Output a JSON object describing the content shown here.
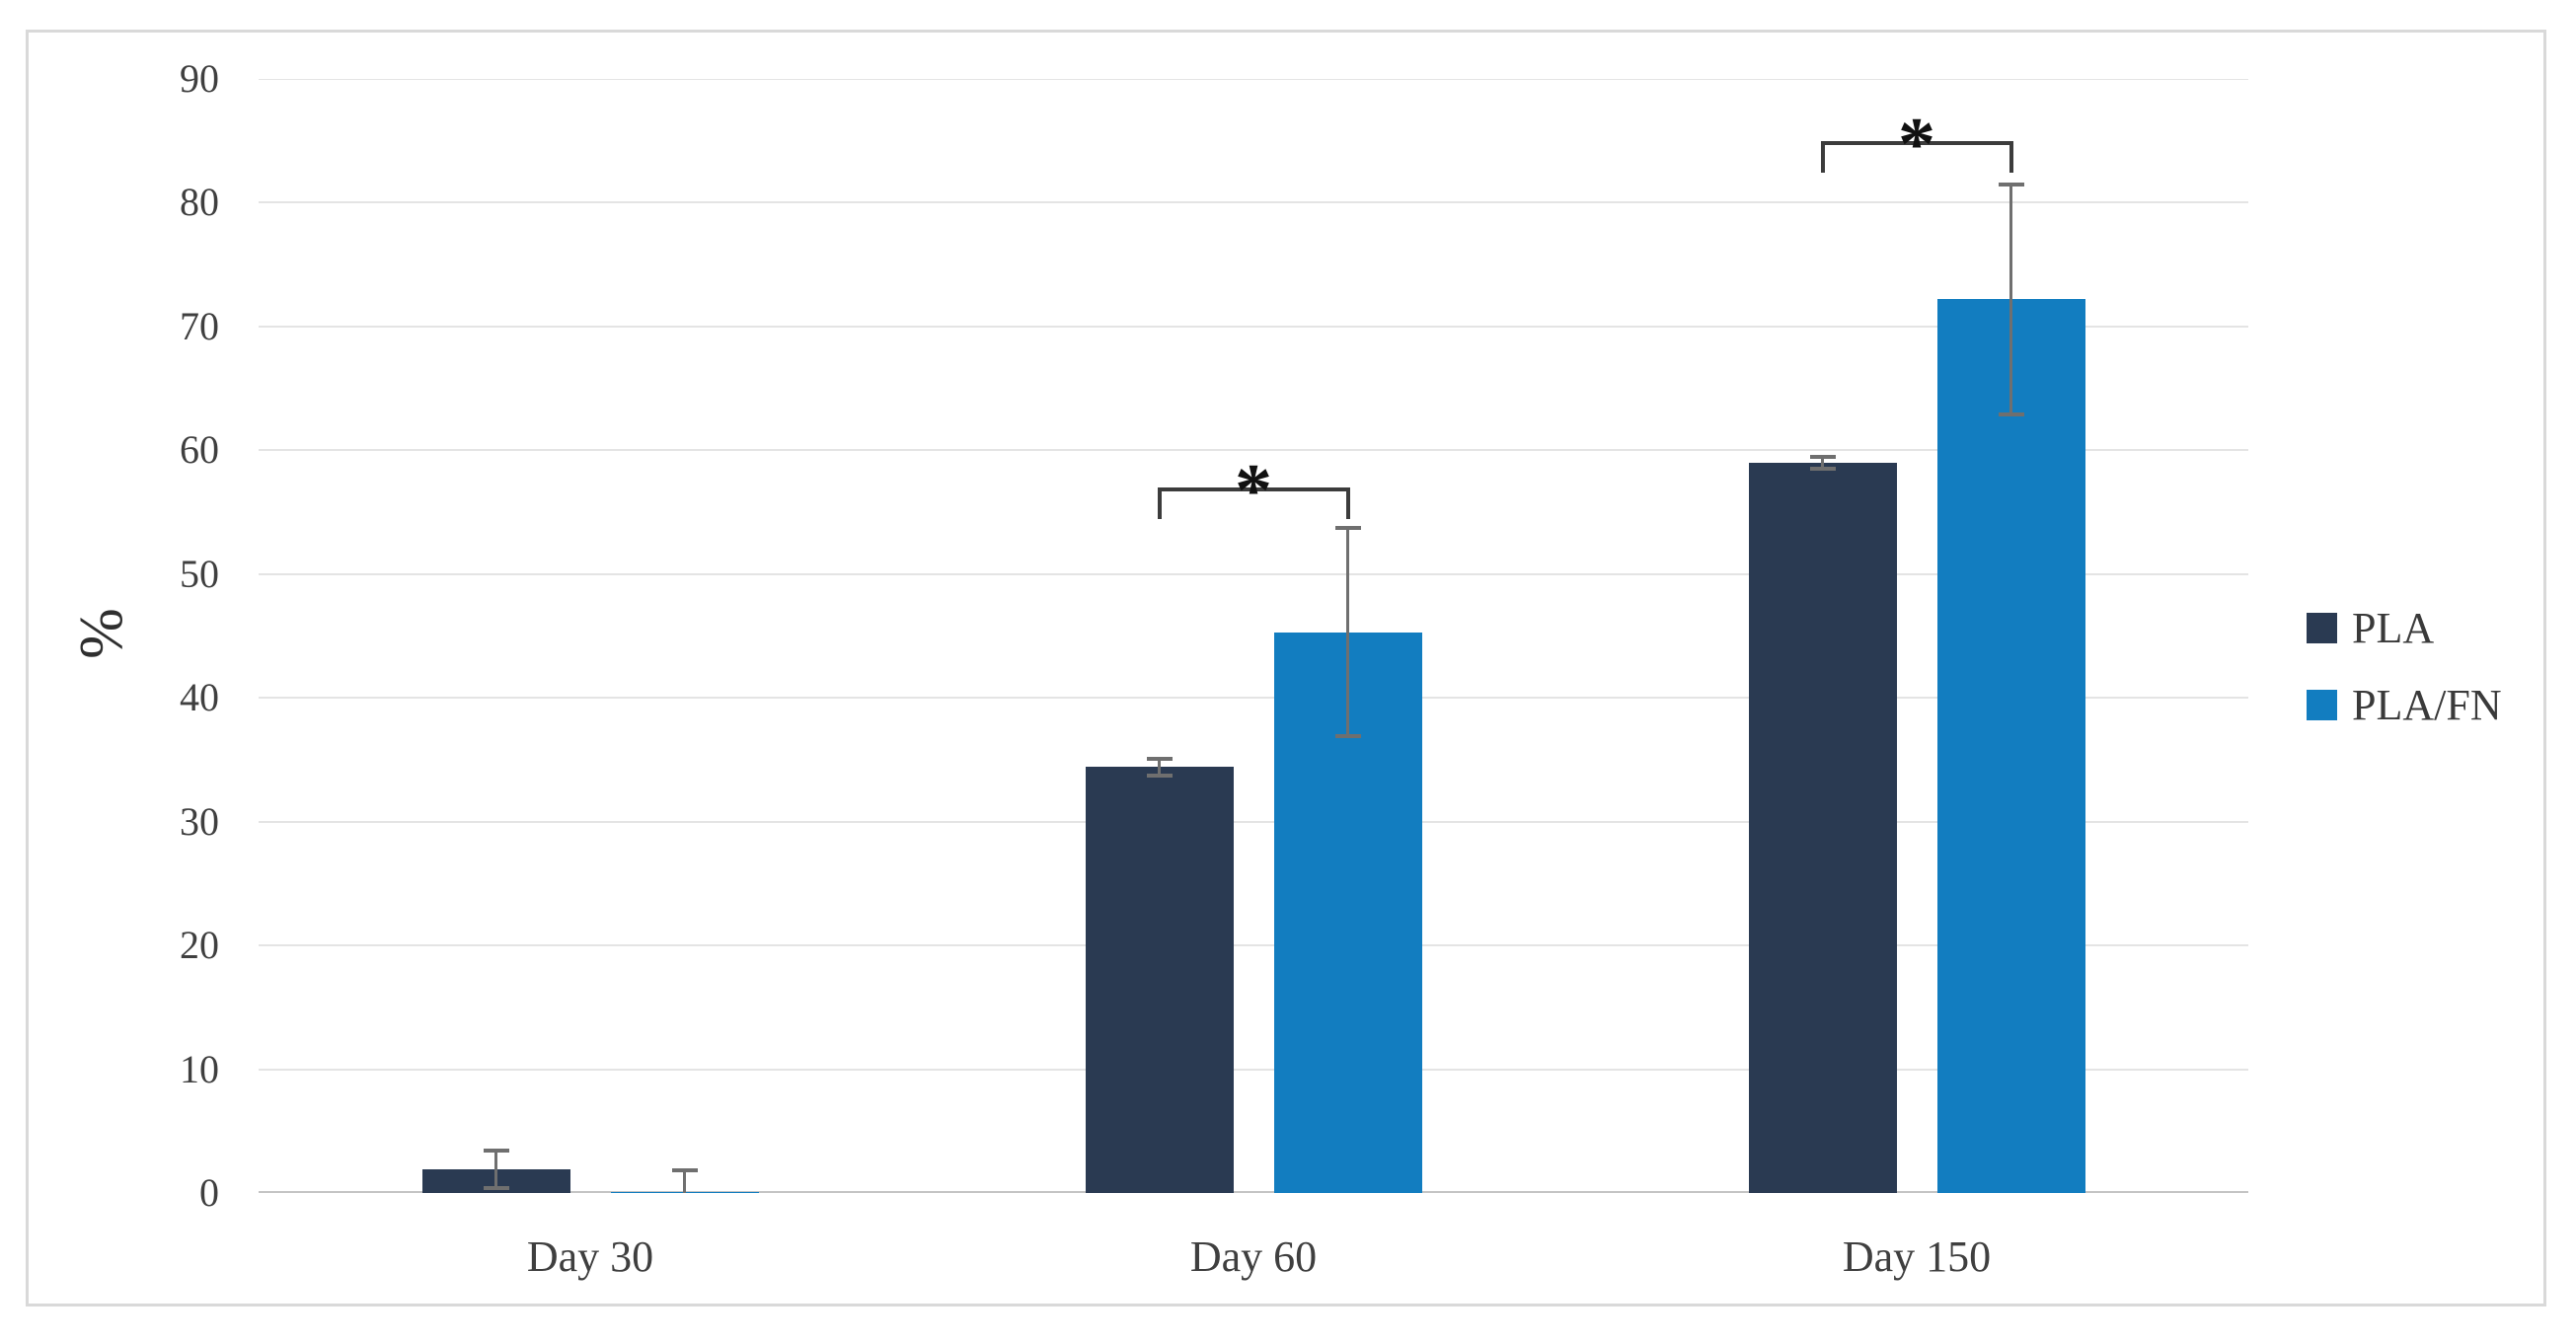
{
  "chart_data": {
    "type": "bar",
    "title": "",
    "ylabel": "%",
    "xlabel": "",
    "ylim": [
      0,
      90
    ],
    "ytick_step": 10,
    "yticks": [
      0,
      10,
      20,
      30,
      40,
      50,
      60,
      70,
      80,
      90
    ],
    "grid": "horizontal",
    "error_bars": true,
    "legend_position": "right-middle",
    "categories": [
      "Day 30",
      "Day 60",
      "Day 150"
    ],
    "series": [
      {
        "name": "PLA",
        "color": "#2a3a52",
        "values": [
          1.9,
          34.4,
          59.0
        ],
        "errors": [
          1.5,
          0.7,
          0.5
        ]
      },
      {
        "name": "PLA/FN",
        "color": "#127dc0",
        "values": [
          0.1,
          45.3,
          72.2
        ],
        "errors": [
          1.7,
          8.4,
          9.3
        ]
      }
    ],
    "significance_markers": [
      {
        "category": "Day 60",
        "between": [
          "PLA",
          "PLA/FN"
        ],
        "label": "*",
        "bracket_y": 57
      },
      {
        "category": "Day 150",
        "between": [
          "PLA",
          "PLA/FN"
        ],
        "label": "*",
        "bracket_y": 85
      }
    ],
    "colors": {
      "background": "#ffffff",
      "figure_border": "#d9d9d9",
      "grid": "#e4e4e4",
      "axis": "#c4c4c4",
      "error_bar": "#6f6f6f",
      "bracket": "#3c3c3c",
      "tick_text": "#3f3f3f",
      "asterisk": "#111111"
    }
  }
}
